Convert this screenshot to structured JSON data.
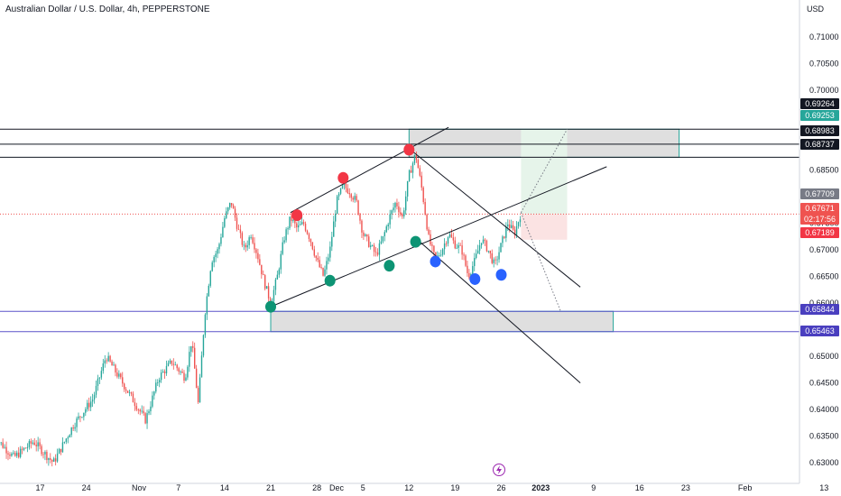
{
  "chart_data": {
    "type": "candlestick",
    "title": "Australian Dollar / U.S. Dollar, 4h, PEPPERSTONE",
    "currency": "USD",
    "ylim": [
      0.6285,
      0.7142
    ],
    "y_ticks": [
      "0.71000",
      "0.70500",
      "0.70000",
      "0.69500",
      "0.69000",
      "0.68500",
      "0.68000",
      "0.67500",
      "0.67000",
      "0.66500",
      "0.66000",
      "0.65500",
      "0.65000",
      "0.64500",
      "0.64000",
      "0.63500",
      "0.63000"
    ],
    "x_ticks": [
      "17",
      "24",
      "Nov",
      "7",
      "14",
      "21",
      "28",
      "Dec",
      "5",
      "12",
      "19",
      "26",
      "2023",
      "9",
      "16",
      "23",
      "Feb",
      "13"
    ],
    "price_tags": [
      {
        "value": "0.69264",
        "bg": "#131722",
        "fg": "#ffffff",
        "price": 0.69264
      },
      {
        "value": "0.69253",
        "bg": "#26a69a",
        "fg": "#ffffff",
        "price": 0.69253
      },
      {
        "value": "0.68983",
        "bg": "#131722",
        "fg": "#ffffff",
        "price": 0.68983
      },
      {
        "value": "0.68737",
        "bg": "#131722",
        "fg": "#ffffff",
        "price": 0.68737
      },
      {
        "value": "0.67709",
        "bg": "#787b86",
        "fg": "#ffffff",
        "price": 0.67709
      },
      {
        "value": "0.67671",
        "bg": "#ef5350",
        "fg": "#ffffff",
        "price": 0.67671,
        "sub": "02:17:56"
      },
      {
        "value": "0.67189",
        "bg": "#f23645",
        "fg": "#ffffff",
        "price": 0.67189
      },
      {
        "value": "0.65844",
        "bg": "#4a3fbf",
        "fg": "#ffffff",
        "price": 0.65844
      },
      {
        "value": "0.65463",
        "bg": "#4a3fbf",
        "fg": "#ffffff",
        "price": 0.65463
      }
    ],
    "horizontal_levels": [
      {
        "price": 0.69264,
        "color": "#131722"
      },
      {
        "price": 0.68983,
        "color": "#131722"
      },
      {
        "price": 0.68737,
        "color": "#131722"
      },
      {
        "price": 0.65844,
        "color": "#5b52c9"
      },
      {
        "price": 0.65463,
        "color": "#5b52c9"
      }
    ],
    "zones": [
      {
        "x1": "Dec 12",
        "x2": "Jan 22",
        "top": 0.69264,
        "bottom": 0.68737,
        "fill": "#d9d9d9",
        "stroke": "#26a69a"
      },
      {
        "x1": "Nov 21",
        "x2": "Jan 12",
        "top": 0.65844,
        "bottom": 0.65463,
        "fill": "#d9d9d9",
        "stroke": "#26a69a"
      }
    ],
    "position": {
      "x1": "Dec 29",
      "x2": "Jan 5",
      "entry": 0.67671,
      "target": 0.69253,
      "stop": 0.67189,
      "profit_fill": "#e6f4ea",
      "loss_fill": "#fbe3e3"
    },
    "trendlines": [
      {
        "from": [
          "Nov 21",
          0.6593
        ],
        "to": [
          "Jan 11",
          0.6856
        ]
      },
      {
        "from": [
          "Nov 24",
          0.677
        ],
        "to": [
          "Dec 18",
          0.693
        ]
      },
      {
        "from": [
          "Dec 12",
          0.689
        ],
        "to": [
          "Jan 7",
          0.663
        ]
      },
      {
        "from": [
          "Dec 13",
          0.6722
        ],
        "to": [
          "Jan 7",
          0.645
        ]
      }
    ],
    "markers": [
      {
        "x": "Nov 25",
        "price": 0.6765,
        "color": "#f23645"
      },
      {
        "x": "Dec 2",
        "price": 0.6835,
        "color": "#f23645"
      },
      {
        "x": "Dec 12",
        "price": 0.6888,
        "color": "#f23645"
      },
      {
        "x": "Nov 21",
        "price": 0.6593,
        "color": "#0d9474"
      },
      {
        "x": "Nov 30",
        "price": 0.6642,
        "color": "#0d9474"
      },
      {
        "x": "Dec 9",
        "price": 0.667,
        "color": "#0d9474"
      },
      {
        "x": "Dec 13",
        "price": 0.6715,
        "color": "#0d9474"
      },
      {
        "x": "Dec 16",
        "price": 0.6678,
        "color": "#2962ff"
      },
      {
        "x": "Dec 22",
        "price": 0.6645,
        "color": "#2962ff"
      },
      {
        "x": "Dec 26",
        "price": 0.6653,
        "color": "#2962ff"
      }
    ],
    "projections": [
      {
        "from": [
          "Dec 29",
          0.677
        ],
        "to": [
          "Jan 5",
          0.69264
        ]
      },
      {
        "from": [
          "Dec 29",
          0.677
        ],
        "to": [
          "Jan 4",
          0.6585
        ]
      }
    ],
    "price_path": [
      [
        "Oct 10",
        0.635
      ],
      [
        "Oct 13",
        0.631
      ],
      [
        "Oct 16",
        0.634
      ],
      [
        "Oct 19",
        0.63
      ],
      [
        "Oct 22",
        0.637
      ],
      [
        "Oct 25",
        0.642
      ],
      [
        "Oct 27",
        0.65
      ],
      [
        "Oct 29",
        0.646
      ],
      [
        "Oct 31",
        0.642
      ],
      [
        "Nov 2",
        0.638
      ],
      [
        "Nov 4",
        0.646
      ],
      [
        "Nov 6",
        0.649
      ],
      [
        "Nov 8",
        0.646
      ],
      [
        "Nov 9",
        0.653
      ],
      [
        "Nov 10",
        0.641
      ],
      [
        "Nov 11",
        0.658
      ],
      [
        "Nov 12",
        0.668
      ],
      [
        "Nov 13",
        0.67
      ],
      [
        "Nov 14",
        0.676
      ],
      [
        "Nov 15",
        0.679
      ],
      [
        "Nov 16",
        0.674
      ],
      [
        "Nov 17",
        0.67
      ],
      [
        "Nov 18",
        0.673
      ],
      [
        "Nov 19",
        0.669
      ],
      [
        "Nov 20",
        0.664
      ],
      [
        "Nov 21",
        0.66
      ],
      [
        "Nov 22",
        0.665
      ],
      [
        "Nov 23",
        0.672
      ],
      [
        "Nov 24",
        0.676
      ],
      [
        "Nov 25",
        0.674
      ],
      [
        "Nov 26",
        0.675
      ],
      [
        "Nov 27",
        0.672
      ],
      [
        "Nov 28",
        0.668
      ],
      [
        "Nov 29",
        0.665
      ],
      [
        "Nov 30",
        0.67
      ],
      [
        "Dec 1",
        0.679
      ],
      [
        "Dec 2",
        0.682
      ],
      [
        "Dec 3",
        0.681
      ],
      [
        "Dec 4",
        0.679
      ],
      [
        "Dec 5",
        0.673
      ],
      [
        "Dec 6",
        0.671
      ],
      [
        "Dec 7",
        0.669
      ],
      [
        "Dec 8",
        0.672
      ],
      [
        "Dec 9",
        0.676
      ],
      [
        "Dec 10",
        0.679
      ],
      [
        "Dec 11",
        0.676
      ],
      [
        "Dec 12",
        0.684
      ],
      [
        "Dec 13",
        0.688
      ],
      [
        "Dec 14",
        0.681
      ],
      [
        "Dec 15",
        0.672
      ],
      [
        "Dec 16",
        0.668
      ],
      [
        "Dec 17",
        0.67
      ],
      [
        "Dec 18",
        0.673
      ],
      [
        "Dec 19",
        0.671
      ],
      [
        "Dec 20",
        0.67
      ],
      [
        "Dec 21",
        0.665
      ],
      [
        "Dec 22",
        0.668
      ],
      [
        "Dec 23",
        0.672
      ],
      [
        "Dec 24",
        0.67
      ],
      [
        "Dec 25",
        0.667
      ],
      [
        "Dec 26",
        0.671
      ],
      [
        "Dec 27",
        0.675
      ],
      [
        "Dec 28",
        0.673
      ],
      [
        "Dec 29",
        0.677
      ]
    ]
  }
}
